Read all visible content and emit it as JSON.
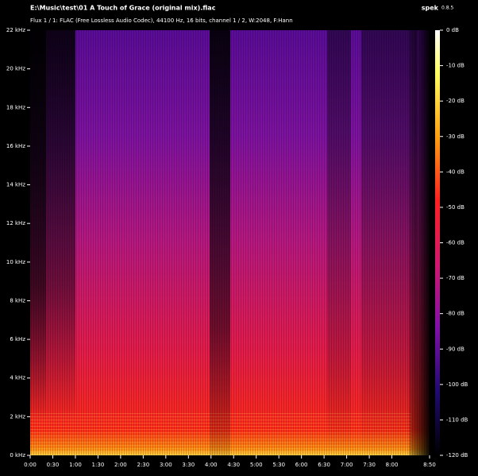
{
  "chart_data": {
    "type": "spectrogram",
    "title": "E:\\Music\\test\\01 A Touch of Grace (original mix).flac",
    "subtitle": "Flux 1 / 1: FLAC (Free Lossless Audio Codec), 44100 Hz, 16 bits, channel 1 / 2, W:2048, F:Hann",
    "app": "spek",
    "version": "0.8.5",
    "xlim": [
      0,
      530
    ],
    "xticks": [
      {
        "value": 0,
        "label": "0:00"
      },
      {
        "value": 30,
        "label": "0:30"
      },
      {
        "value": 60,
        "label": "1:00"
      },
      {
        "value": 90,
        "label": "1:30"
      },
      {
        "value": 120,
        "label": "2:00"
      },
      {
        "value": 150,
        "label": "2:30"
      },
      {
        "value": 180,
        "label": "3:00"
      },
      {
        "value": 210,
        "label": "3:30"
      },
      {
        "value": 240,
        "label": "4:00"
      },
      {
        "value": 270,
        "label": "4:30"
      },
      {
        "value": 300,
        "label": "5:00"
      },
      {
        "value": 330,
        "label": "5:30"
      },
      {
        "value": 360,
        "label": "6:00"
      },
      {
        "value": 390,
        "label": "6:30"
      },
      {
        "value": 420,
        "label": "7:00"
      },
      {
        "value": 450,
        "label": "7:30"
      },
      {
        "value": 480,
        "label": "8:00"
      },
      {
        "value": 530,
        "label": "8:50"
      }
    ],
    "ylim": [
      0,
      22
    ],
    "yticks": [
      {
        "value": 0,
        "label": "0 kHz"
      },
      {
        "value": 2,
        "label": "2 kHz"
      },
      {
        "value": 4,
        "label": "4 kHz"
      },
      {
        "value": 6,
        "label": "6 kHz"
      },
      {
        "value": 8,
        "label": "8 kHz"
      },
      {
        "value": 10,
        "label": "10 kHz"
      },
      {
        "value": 12,
        "label": "12 kHz"
      },
      {
        "value": 14,
        "label": "14 kHz"
      },
      {
        "value": 16,
        "label": "16 kHz"
      },
      {
        "value": 18,
        "label": "18 kHz"
      },
      {
        "value": 20,
        "label": "20 kHz"
      },
      {
        "value": 22,
        "label": "22 kHz"
      }
    ],
    "colorbar": {
      "lim": [
        -120,
        0
      ],
      "ticks": [
        {
          "value": 0,
          "label": "0 dB"
        },
        {
          "value": -10,
          "label": "-10 dB"
        },
        {
          "value": -20,
          "label": "-20 dB"
        },
        {
          "value": -30,
          "label": "-30 dB"
        },
        {
          "value": -40,
          "label": "-40 dB"
        },
        {
          "value": -50,
          "label": "-50 dB"
        },
        {
          "value": -60,
          "label": "-60 dB"
        },
        {
          "value": -70,
          "label": "-70 dB"
        },
        {
          "value": -80,
          "label": "-80 dB"
        },
        {
          "value": -90,
          "label": "-90 dB"
        },
        {
          "value": -100,
          "label": "-100 dB"
        },
        {
          "value": -110,
          "label": "-110 dB"
        },
        {
          "value": -120,
          "label": "-120 dB"
        }
      ]
    }
  }
}
